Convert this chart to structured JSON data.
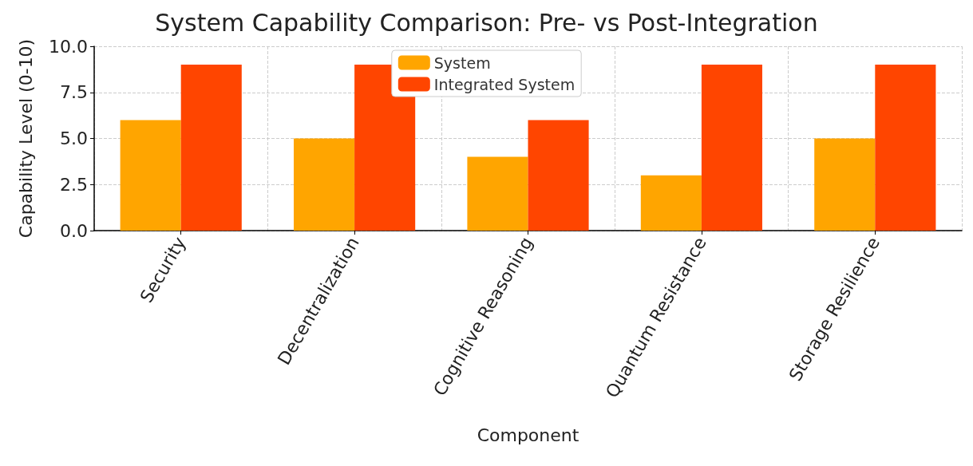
{
  "chart_data": {
    "type": "bar",
    "title": "System Capability Comparison: Pre- vs Post-Integration",
    "xlabel": "Component",
    "ylabel": "Capability Level (0-10)",
    "categories": [
      "Security",
      "Decentralization",
      "Cognitive Reasoning",
      "Quantum Resistance",
      "Storage Resilience"
    ],
    "series": [
      {
        "name": "System",
        "color": "#ffa500",
        "values": [
          6,
          5,
          4,
          3,
          5
        ]
      },
      {
        "name": "Integrated System",
        "color": "#ff4500",
        "values": [
          9,
          9,
          6,
          9,
          9
        ]
      }
    ],
    "ylim": [
      0,
      10
    ],
    "yticks": [
      {
        "value": 0,
        "label": "0.0"
      },
      {
        "value": 2.5,
        "label": "2.5"
      },
      {
        "value": 5,
        "label": "5.0"
      },
      {
        "value": 7.5,
        "label": "7.5"
      },
      {
        "value": 10,
        "label": "10.0"
      }
    ],
    "grid": true,
    "legend": "top"
  }
}
